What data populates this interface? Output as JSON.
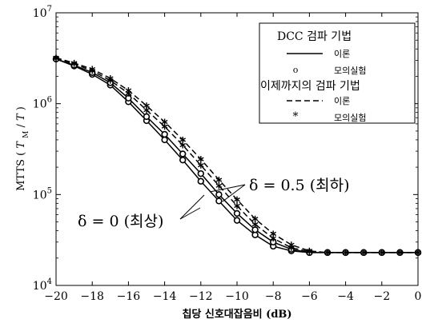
{
  "chart_data": {
    "type": "line",
    "xlabel": "칩당 신호대잡음비 (dB)",
    "ylabel_text": "MTTS",
    "ylabel_frac_num": "T",
    "ylabel_frac_num_sub": "M",
    "ylabel_frac_den": "T",
    "xlim": [
      -20,
      0
    ],
    "ylim": [
      10000,
      10000000
    ],
    "yscale": "log",
    "x_ticks": [
      -20,
      -18,
      -16,
      -14,
      -12,
      -10,
      -8,
      -6,
      -4,
      -2,
      0
    ],
    "x_tick_labels": [
      "−20",
      "−18",
      "−16",
      "−14",
      "−12",
      "−10",
      "−8",
      "−6",
      "−4",
      "−2",
      "0"
    ],
    "y_ticks": [
      10000,
      100000,
      1000000,
      10000000
    ],
    "y_tick_labels": [
      {
        "base": "10",
        "exp": "4"
      },
      {
        "base": "10",
        "exp": "5"
      },
      {
        "base": "10",
        "exp": "6"
      },
      {
        "base": "10",
        "exp": "7"
      }
    ],
    "grid": false,
    "legend_position": "top-right",
    "legend": {
      "group1_title": "DCC 검파 기법",
      "group1_line_label": "이론",
      "group1_marker_label": "모의실험",
      "group2_title": "이제까지의 검파 기법",
      "group2_line_label": "이론",
      "group2_marker_label": "모의실험"
    },
    "annotations": {
      "delta_half": "δ = 0.5 (최하)",
      "delta_zero": "δ = 0 (최상)"
    },
    "series": [
      {
        "name": "DCC 검파 기법",
        "case": "δ = 0",
        "style": "solid",
        "marker": "o",
        "color": "#000000",
        "x": [
          -20,
          -19,
          -18,
          -17,
          -16,
          -15,
          -14,
          -13,
          -12,
          -11,
          -10,
          -9,
          -8,
          -7,
          -6,
          -5,
          -4,
          -3,
          -2,
          -1,
          0
        ],
        "y": [
          3100000,
          2600000,
          2100000,
          1600000,
          1050000,
          650000,
          400000,
          240000,
          140000,
          85000,
          52000,
          36000,
          27000,
          24000,
          23000,
          23000,
          23000,
          23000,
          23000,
          23000,
          23000
        ]
      },
      {
        "name": "DCC 검파 기법",
        "case": "δ = 0.5",
        "style": "solid",
        "marker": "o",
        "color": "#000000",
        "x": [
          -20,
          -19,
          -18,
          -17,
          -16,
          -15,
          -14,
          -13,
          -12,
          -11,
          -10,
          -9,
          -8,
          -7,
          -6,
          -5,
          -4,
          -3,
          -2,
          -1,
          0
        ],
        "y": [
          3100000,
          2650000,
          2200000,
          1700000,
          1150000,
          720000,
          460000,
          280000,
          170000,
          100000,
          62000,
          41000,
          30000,
          25000,
          23000,
          23000,
          23000,
          23000,
          23000,
          23000,
          23000
        ]
      },
      {
        "name": "이제까지의 검파 기법",
        "case": "δ = 0",
        "style": "dashed",
        "marker": "*",
        "color": "#000000",
        "x": [
          -20,
          -19,
          -18,
          -17,
          -16,
          -15,
          -14,
          -13,
          -12,
          -11,
          -10,
          -9,
          -8,
          -7,
          -6,
          -5,
          -4,
          -3,
          -2,
          -1,
          0
        ],
        "y": [
          3150000,
          2750000,
          2300000,
          1800000,
          1300000,
          850000,
          560000,
          350000,
          210000,
          125000,
          75000,
          47000,
          33000,
          26000,
          23500,
          23000,
          23000,
          23000,
          23000,
          23000,
          23000
        ]
      },
      {
        "name": "이제까지의 검파 기법",
        "case": "δ = 0.5",
        "style": "dashed",
        "marker": "*",
        "color": "#000000",
        "x": [
          -20,
          -19,
          -18,
          -17,
          -16,
          -15,
          -14,
          -13,
          -12,
          -11,
          -10,
          -9,
          -8,
          -7,
          -6,
          -5,
          -4,
          -3,
          -2,
          -1,
          0
        ],
        "y": [
          3200000,
          2800000,
          2400000,
          1900000,
          1400000,
          950000,
          630000,
          400000,
          245000,
          145000,
          88000,
          54000,
          37000,
          28000,
          24000,
          23000,
          23000,
          23000,
          23000,
          23000,
          23000
        ]
      }
    ]
  }
}
